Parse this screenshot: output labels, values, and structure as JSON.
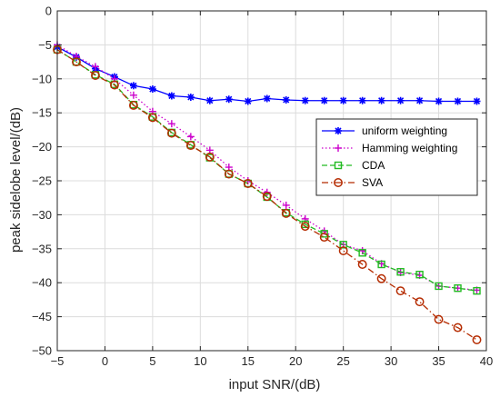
{
  "chart_data": {
    "type": "line",
    "xlabel": "input SNR/(dB)",
    "ylabel": "peak sidelobe level/(dB)",
    "xlim": [
      -5,
      40
    ],
    "ylim": [
      -50,
      0
    ],
    "xticks": [
      -5,
      0,
      5,
      10,
      15,
      20,
      25,
      30,
      35,
      40
    ],
    "yticks": [
      0,
      -5,
      -10,
      -15,
      -20,
      -25,
      -30,
      -35,
      -40,
      -45,
      -50
    ],
    "grid": true,
    "legend_position": "right",
    "x": [
      -5,
      -3,
      -1,
      1,
      3,
      5,
      7,
      9,
      11,
      13,
      15,
      17,
      19,
      21,
      23,
      25,
      27,
      29,
      31,
      33,
      35,
      37,
      39
    ],
    "series": [
      {
        "name": "uniform weighting",
        "color": "#0000ff",
        "marker": "asterisk",
        "dash": "solid",
        "values": [
          -5.3,
          -6.8,
          -8.5,
          -9.7,
          -11.0,
          -11.5,
          -12.5,
          -12.7,
          -13.2,
          -13.0,
          -13.3,
          -12.9,
          -13.1,
          -13.2,
          -13.2,
          -13.2,
          -13.2,
          -13.2,
          -13.2,
          -13.2,
          -13.3,
          -13.3,
          -13.3
        ]
      },
      {
        "name": "Hamming weighting",
        "color": "#cc00cc",
        "marker": "plus",
        "dash": "dotted",
        "values": [
          -5.0,
          -6.7,
          -8.2,
          -10.0,
          -12.4,
          -14.8,
          -16.6,
          -18.5,
          -20.5,
          -23.0,
          -25.0,
          -26.7,
          -28.6,
          -30.6,
          -32.4,
          -34.4,
          -35.3,
          -37.2,
          -38.5,
          -38.9,
          -40.5,
          -40.8,
          -41.1
        ]
      },
      {
        "name": "CDA",
        "color": "#22bb22",
        "marker": "square",
        "dash": "dashed",
        "values": [
          -5.7,
          -7.5,
          -9.4,
          -10.8,
          -13.8,
          -15.6,
          -17.9,
          -19.7,
          -21.6,
          -24.0,
          -25.4,
          -27.4,
          -29.7,
          -31.4,
          -32.8,
          -34.4,
          -35.6,
          -37.3,
          -38.4,
          -38.8,
          -40.5,
          -40.8,
          -41.2
        ]
      },
      {
        "name": "SVA",
        "color": "#b52b00",
        "marker": "circle",
        "dash": "dashdot",
        "values": [
          -5.7,
          -7.5,
          -9.5,
          -10.9,
          -13.9,
          -15.7,
          -18.0,
          -19.8,
          -21.5,
          -24.0,
          -25.4,
          -27.3,
          -29.8,
          -31.7,
          -33.3,
          -35.3,
          -37.3,
          -39.4,
          -41.2,
          -42.8,
          -45.4,
          -46.6,
          -48.4
        ]
      }
    ]
  }
}
